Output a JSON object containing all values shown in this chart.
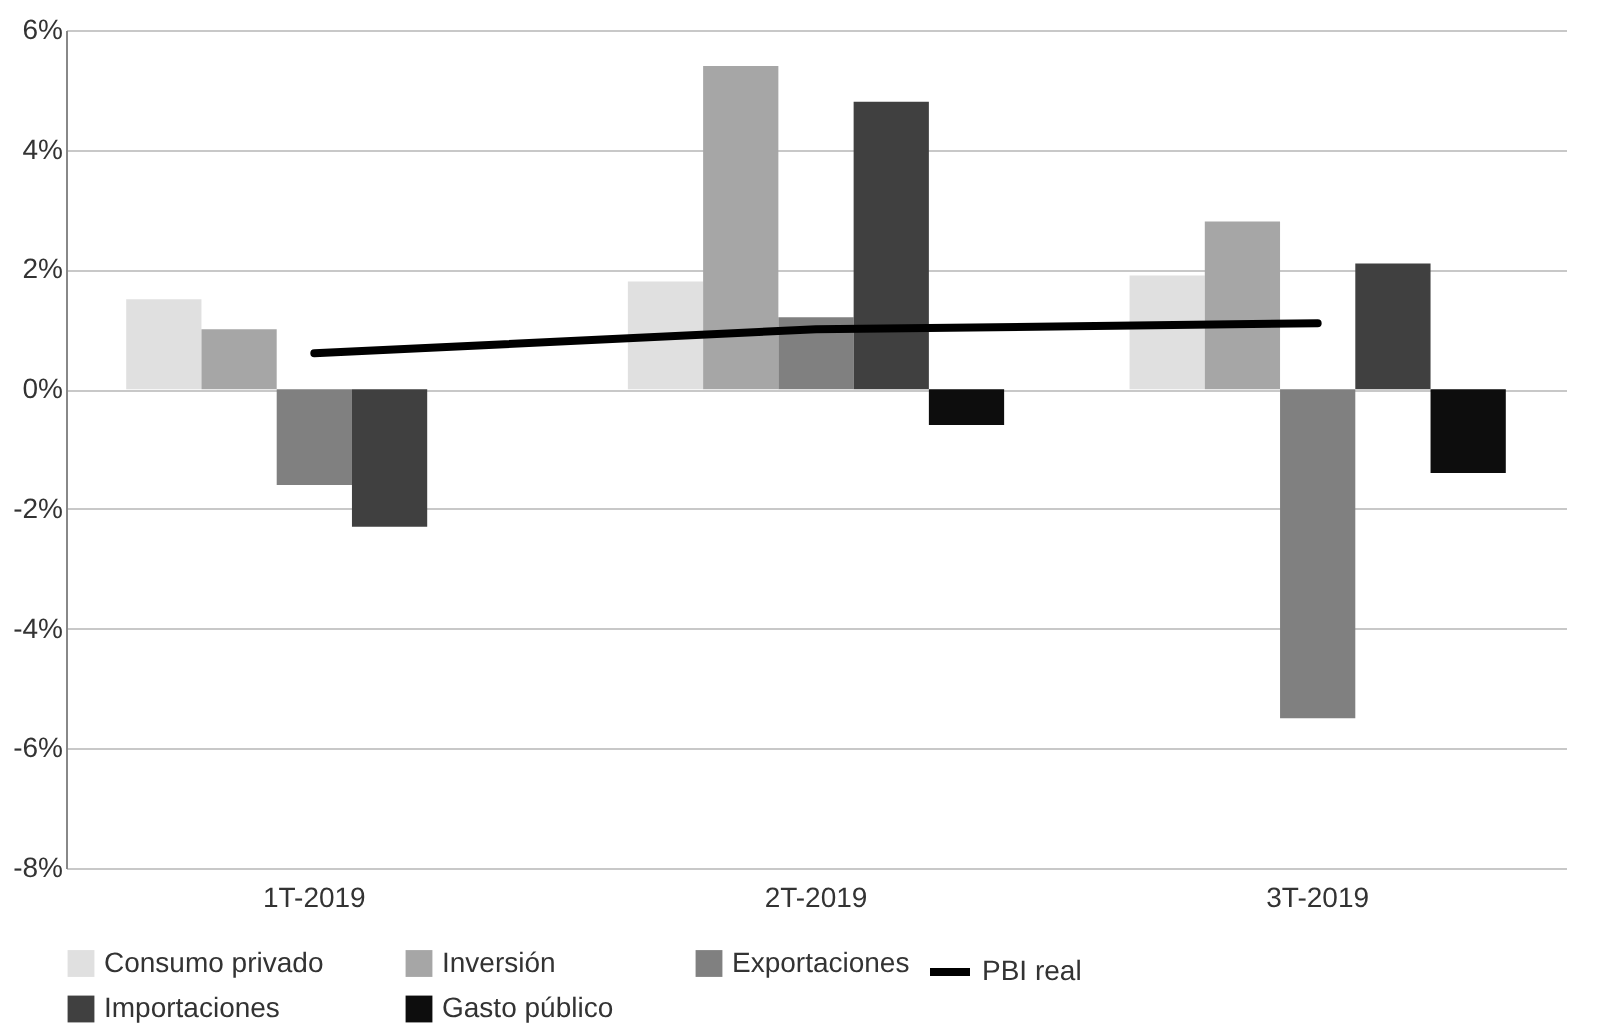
{
  "chart_data": {
    "type": "bar",
    "categories": [
      "1T-2019",
      "2T-2019",
      "3T-2019"
    ],
    "series": [
      {
        "name": "Consumo privado",
        "color": "#e0e0e0",
        "values": [
          1.5,
          1.8,
          1.9
        ]
      },
      {
        "name": "Inversión",
        "color": "#a6a6a6",
        "values": [
          1.0,
          5.4,
          2.8
        ]
      },
      {
        "name": "Exportaciones",
        "color": "#808080",
        "values": [
          -1.6,
          1.2,
          -5.5
        ]
      },
      {
        "name": "Importaciones",
        "color": "#404040",
        "values": [
          -2.3,
          4.8,
          2.1
        ]
      },
      {
        "name": "Gasto público",
        "color": "#0d0d0d",
        "values": [
          null,
          -0.6,
          -1.4
        ]
      },
      {
        "name": "PBI real",
        "color": "#000000",
        "type": "line",
        "values": [
          0.6,
          1.0,
          1.1
        ]
      }
    ],
    "ylim": [
      -8,
      6
    ],
    "yticks": [
      {
        "value": -8,
        "label": "-8%"
      },
      {
        "value": -6,
        "label": "-6%"
      },
      {
        "value": -4,
        "label": "-4%"
      },
      {
        "value": -2,
        "label": "-2%"
      },
      {
        "value": 0,
        "label": "0%"
      },
      {
        "value": 2,
        "label": "2%"
      },
      {
        "value": 4,
        "label": "4%"
      },
      {
        "value": 6,
        "label": "6%"
      }
    ],
    "grid": "y",
    "legend": "bottom",
    "marker": "none",
    "line_style": "solid"
  }
}
